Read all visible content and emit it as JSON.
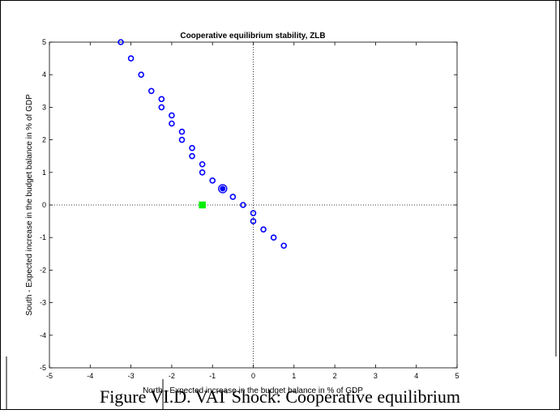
{
  "caption": "Figure VI.D. VAT Shock: Cooperative equilibrium",
  "chart_data": {
    "type": "scatter",
    "title": "Cooperative equilibrium stability, ZLB",
    "xlabel": "North - Expected increase in the budget balance in % of GDP",
    "ylabel": "South - Expected increase in the budget balance in % of GDP",
    "xlim": [
      -5,
      5
    ],
    "ylim": [
      -5,
      5
    ],
    "xticks": [
      "-5",
      "-4",
      "-3",
      "-2",
      "-1",
      "0",
      "1",
      "2",
      "3",
      "4",
      "5"
    ],
    "yticks": [
      "-5",
      "-4",
      "-3",
      "-2",
      "-1",
      "0",
      "1",
      "2",
      "3",
      "4",
      "5"
    ],
    "reference_lines": {
      "x": 0,
      "y": 0,
      "style": "dotted"
    },
    "series": [
      {
        "marker": "open-circle",
        "color": "#0000ff",
        "points": [
          [
            -3.25,
            5.0
          ],
          [
            -3.0,
            4.5
          ],
          [
            -2.75,
            4.0
          ],
          [
            -2.5,
            3.5
          ],
          [
            -2.25,
            3.25
          ],
          [
            -2.25,
            3.0
          ],
          [
            -2.0,
            2.75
          ],
          [
            -2.0,
            2.5
          ],
          [
            -1.75,
            2.25
          ],
          [
            -1.75,
            2.0
          ],
          [
            -1.5,
            1.75
          ],
          [
            -1.5,
            1.5
          ],
          [
            -1.25,
            1.25
          ],
          [
            -1.25,
            1.0
          ],
          [
            -1.0,
            0.75
          ],
          [
            -0.5,
            0.25
          ],
          [
            -0.25,
            0.0
          ],
          [
            0.0,
            -0.25
          ],
          [
            0.0,
            -0.5
          ],
          [
            0.25,
            -0.75
          ],
          [
            0.5,
            -1.0
          ],
          [
            0.75,
            -1.25
          ]
        ]
      },
      {
        "marker": "highlighted-circle",
        "color": "#0000ff",
        "points": [
          [
            -0.75,
            0.5
          ]
        ]
      },
      {
        "marker": "square",
        "color": "#00ee00",
        "points": [
          [
            -1.25,
            0.0
          ]
        ]
      }
    ]
  }
}
